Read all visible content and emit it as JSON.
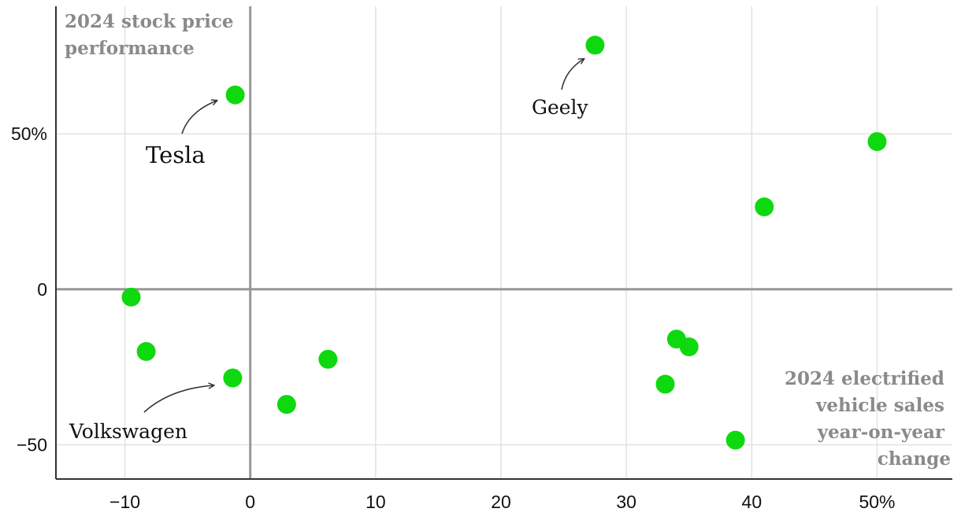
{
  "chart_data": {
    "type": "scatter",
    "title": "",
    "xlabel": "2024 electrified vehicle sales year-on-year change",
    "ylabel": "2024 stock price performance",
    "xlabel_lines": [
      "2024 electrified",
      "vehicle sales",
      "year-on-year",
      "change"
    ],
    "ylabel_lines": [
      "2024 stock price",
      "performance"
    ],
    "xlim": [
      -15.5,
      56
    ],
    "ylim": [
      -61,
      91
    ],
    "x_ticks": [
      {
        "value": -10,
        "label": "−10"
      },
      {
        "value": 0,
        "label": "0"
      },
      {
        "value": 10,
        "label": "10"
      },
      {
        "value": 20,
        "label": "20"
      },
      {
        "value": 30,
        "label": "30"
      },
      {
        "value": 40,
        "label": "40"
      },
      {
        "value": 50,
        "label": "50%"
      }
    ],
    "y_ticks": [
      {
        "value": -50,
        "label": "−50"
      },
      {
        "value": 0,
        "label": "0"
      },
      {
        "value": 50,
        "label": "50%"
      }
    ],
    "grid": true,
    "point_color": "#0ed90e",
    "points": [
      {
        "x": -1.2,
        "y": 62.5,
        "label": "Tesla"
      },
      {
        "x": 27.5,
        "y": 78.5,
        "label": "Geely"
      },
      {
        "x": 50.0,
        "y": 47.5
      },
      {
        "x": 41.0,
        "y": 26.5
      },
      {
        "x": -9.5,
        "y": -2.5
      },
      {
        "x": -8.3,
        "y": -20.0
      },
      {
        "x": -1.4,
        "y": -28.5,
        "label": "Volkswagen"
      },
      {
        "x": 2.9,
        "y": -37.0
      },
      {
        "x": 6.2,
        "y": -22.5
      },
      {
        "x": 34.0,
        "y": -16.0
      },
      {
        "x": 35.0,
        "y": -18.5
      },
      {
        "x": 33.1,
        "y": -30.5
      },
      {
        "x": 38.7,
        "y": -48.5
      }
    ],
    "annotations": [
      {
        "text": "Tesla",
        "size": "large"
      },
      {
        "text": "Geely",
        "size": "medium"
      },
      {
        "text": "Volkswagen",
        "size": "medium"
      }
    ]
  }
}
